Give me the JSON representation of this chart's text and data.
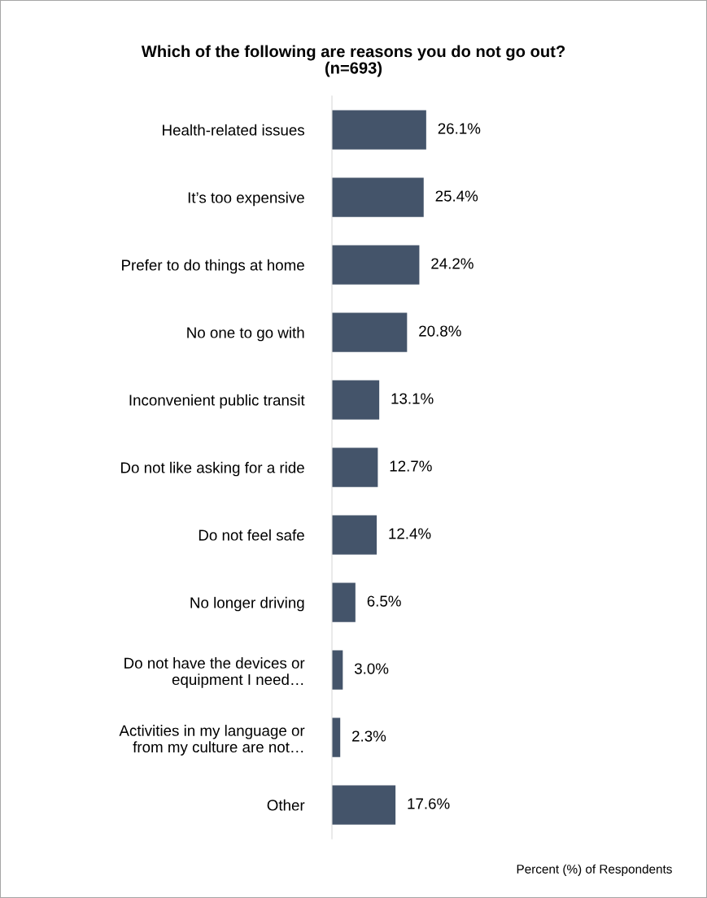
{
  "chart_data": {
    "type": "bar",
    "orientation": "horizontal",
    "title": "Which of the following are reasons you do not go out?\n(n=693)",
    "annotations": [
      "Percent (%) of Respondents"
    ],
    "categories": [
      "Health-related issues",
      "It’s too expensive",
      "Prefer to do things at home",
      "No one to go with",
      "Inconvenient public transit",
      "Do not like asking for a ride",
      "Do not feel safe",
      "No longer driving",
      "Do not have the devices or\nequipment I need…",
      "Activities in my language or\nfrom my culture are not…",
      "Other"
    ],
    "values": [
      26.1,
      25.4,
      24.2,
      20.8,
      13.1,
      12.7,
      12.4,
      6.5,
      3.0,
      2.3,
      17.6
    ],
    "value_labels": [
      "26.1%",
      "25.4%",
      "24.2%",
      "20.8%",
      "13.1%",
      "12.7%",
      "12.4%",
      "6.5%",
      "3.0%",
      "2.3%",
      "17.6%"
    ],
    "color": "#44546a",
    "grid": false,
    "legend": false
  }
}
